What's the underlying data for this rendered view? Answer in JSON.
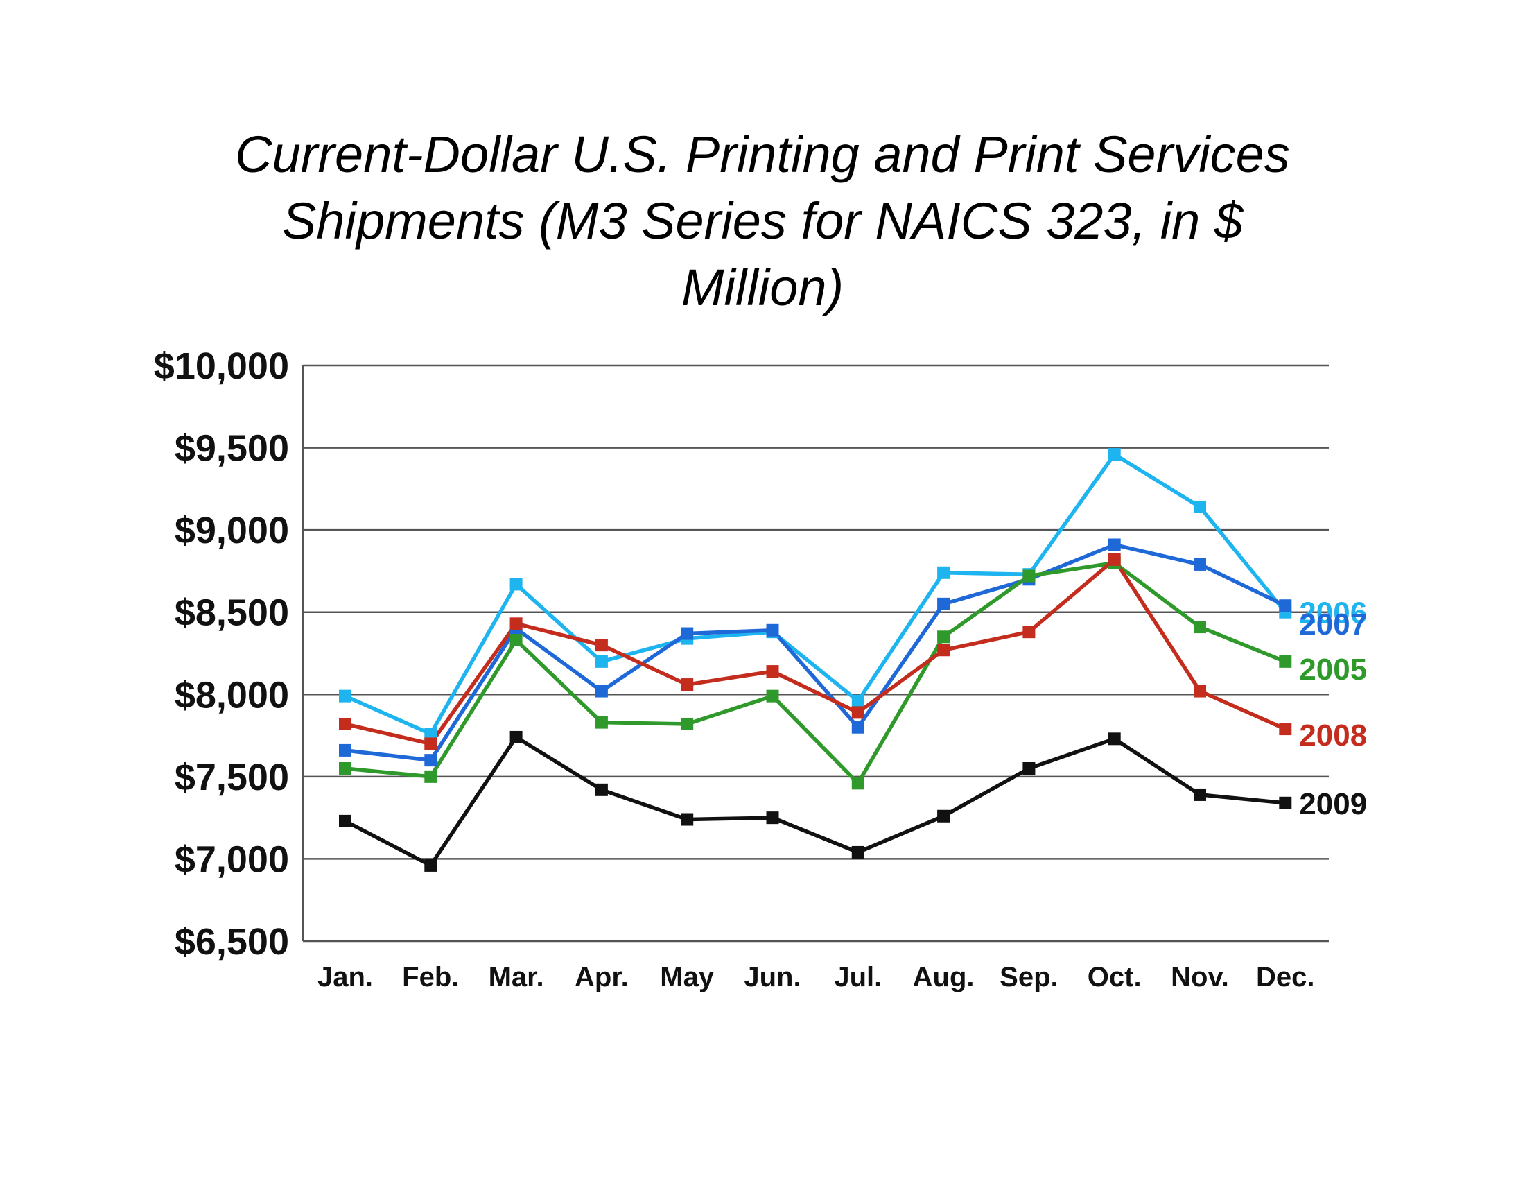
{
  "chart_data": {
    "type": "line",
    "title_lines": [
      "Current-Dollar U.S. Printing and Print Services",
      "Shipments (M3 Series for NAICS 323, in $",
      "Million)"
    ],
    "categories": [
      "Jan.",
      "Feb.",
      "Mar.",
      "Apr.",
      "May",
      "Jun.",
      "Jul.",
      "Aug.",
      "Sep.",
      "Oct.",
      "Nov.",
      "Dec."
    ],
    "ylim": [
      6500,
      10000
    ],
    "yticks": [
      10000,
      9500,
      9000,
      8500,
      8000,
      7500,
      7000,
      6500
    ],
    "ytick_labels": [
      "$10,000",
      "$9,500",
      "$9,000",
      "$8,500",
      "$8,000",
      "$7,500",
      "$7,000",
      "$6,500"
    ],
    "grid": "horizontal",
    "legend": "right-end labels",
    "series": [
      {
        "name": "2006",
        "color": "#1eb4ef",
        "values": [
          7990,
          7760,
          8670,
          8200,
          8340,
          8380,
          7960,
          8740,
          8730,
          9460,
          9140,
          8500
        ]
      },
      {
        "name": "2007",
        "color": "#1f68d8",
        "values": [
          7660,
          7600,
          8400,
          8020,
          8370,
          8390,
          7800,
          8550,
          8700,
          8910,
          8790,
          8540
        ]
      },
      {
        "name": "2005",
        "color": "#2f9a2b",
        "values": [
          7550,
          7500,
          8330,
          7830,
          7820,
          7990,
          7460,
          8350,
          8720,
          8800,
          8410,
          8200
        ]
      },
      {
        "name": "2008",
        "color": "#c42c1d",
        "values": [
          7820,
          7700,
          8430,
          8300,
          8060,
          8140,
          7890,
          8270,
          8380,
          8820,
          8020,
          7790
        ]
      },
      {
        "name": "2009",
        "color": "#111111",
        "values": [
          7230,
          6960,
          7740,
          7420,
          7240,
          7250,
          7040,
          7260,
          7550,
          7730,
          7390,
          7340
        ]
      }
    ]
  }
}
